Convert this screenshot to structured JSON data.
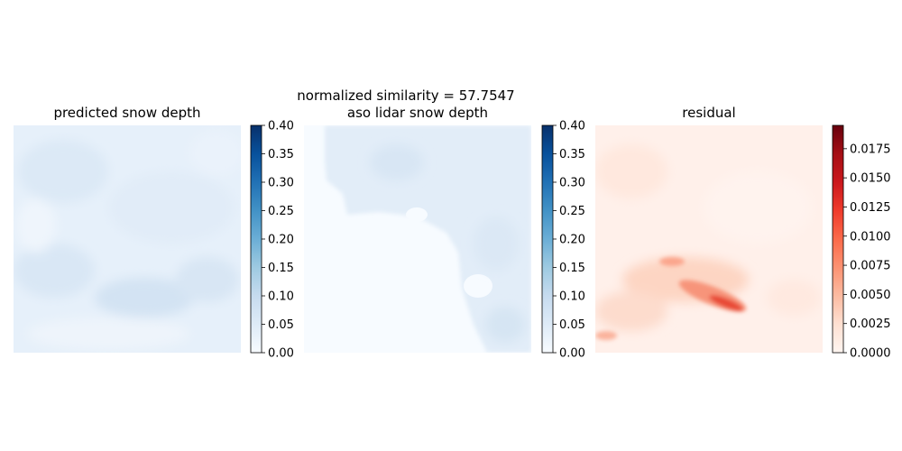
{
  "figure_title_line": "normalized similarity = 57.7547",
  "chart_data": [
    {
      "type": "heatmap",
      "title": "predicted snow depth",
      "colormap": "Blues",
      "colorbar": {
        "range": [
          0.0,
          0.4
        ],
        "ticks": [
          "0.00",
          "0.05",
          "0.10",
          "0.15",
          "0.20",
          "0.25",
          "0.30",
          "0.35",
          "0.40"
        ]
      },
      "axes_visible": false
    },
    {
      "type": "heatmap",
      "title": "aso lidar snow depth",
      "colormap": "Blues",
      "colorbar": {
        "range": [
          0.0,
          0.4
        ],
        "ticks": [
          "0.00",
          "0.05",
          "0.10",
          "0.15",
          "0.20",
          "0.25",
          "0.30",
          "0.35",
          "0.40"
        ]
      },
      "axes_visible": false
    },
    {
      "type": "heatmap",
      "title": "residual",
      "colormap": "Reds",
      "colorbar": {
        "range": [
          0.0,
          0.0195
        ],
        "ticks": [
          "0.0000",
          "0.0025",
          "0.0050",
          "0.0075",
          "0.0100",
          "0.0125",
          "0.0150",
          "0.0175"
        ]
      },
      "axes_visible": false
    }
  ]
}
